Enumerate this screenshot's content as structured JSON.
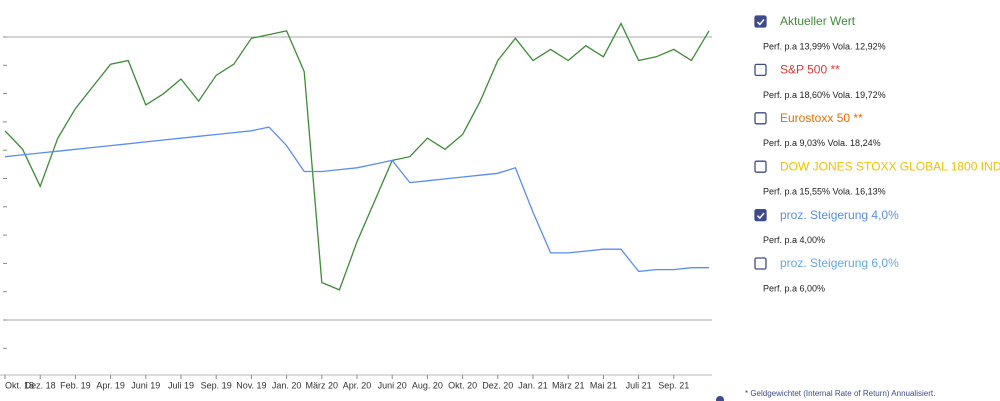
{
  "chart_data": {
    "type": "line",
    "categories": [
      "Okt. 18",
      null,
      "Dez. 18",
      null,
      "Feb. 19",
      null,
      "Apr. 19",
      null,
      "Juni 19",
      null,
      "Juli 19",
      null,
      "Sep. 19",
      null,
      "Nov. 19",
      null,
      "Jan. 20",
      null,
      "März 20",
      null,
      "Apr. 20",
      null,
      "Juni 20",
      null,
      "Aug. 20",
      null,
      "Okt. 20",
      null,
      "Dez. 20",
      null,
      "Jan. 21",
      null,
      "März 21",
      null,
      "Mai 21",
      null,
      "Juli 21",
      null,
      "Sep. 21",
      null,
      null
    ],
    "ylim": [
      0,
      100
    ],
    "series": [
      {
        "name": "Aktueller Wert",
        "color": "#3d8b37",
        "checked": true,
        "perf": "Perf. p.a 13,99% Vola. 12,92%",
        "values": [
          66,
          61,
          51,
          64,
          72,
          78,
          84,
          85,
          73,
          76,
          80,
          74,
          81,
          84,
          91,
          92,
          93,
          82,
          25,
          23,
          36,
          47,
          58,
          59,
          64,
          61,
          65,
          74,
          85,
          91,
          85,
          88,
          85,
          89,
          86,
          95,
          85,
          86,
          88,
          85,
          93
        ]
      },
      {
        "name": "S&P 500 **",
        "color": "#e53935",
        "checked": false,
        "perf": "Perf. p.a 18,60% Vola. 19,72%"
      },
      {
        "name": "Eurostoxx 50 **",
        "color": "#ef6c00",
        "checked": false,
        "perf": "Perf. p.a 9,03% Vola. 18,24%"
      },
      {
        "name": "DOW JONES STOXX GLOBAL 1800 INDEX **",
        "color": "#f2c200",
        "checked": false,
        "perf": "Perf. p.a 15,55% Vola. 16,13%"
      },
      {
        "name": "proz. Steigerung 4,0%",
        "color": "#5b8def",
        "checked": true,
        "perf": "Perf. p.a 4,00%",
        "values": [
          59,
          59.5,
          60,
          60.5,
          61,
          61.5,
          62,
          62.5,
          63,
          63.5,
          64,
          64.5,
          65,
          65.5,
          66,
          67,
          62,
          55,
          55,
          55.5,
          56,
          57,
          58,
          52,
          52.5,
          53,
          53.5,
          54,
          54.5,
          56,
          44,
          33,
          33,
          33.5,
          34,
          34,
          28,
          28.5,
          28.5,
          29,
          29
        ]
      },
      {
        "name": "proz. Steigerung 6,0%",
        "color": "#64a8e8",
        "checked": false,
        "perf": "Perf. p.a 6,00%"
      }
    ],
    "footnote": "* Geldgewichtet (Internal Rate of Return) Annualisiert."
  }
}
